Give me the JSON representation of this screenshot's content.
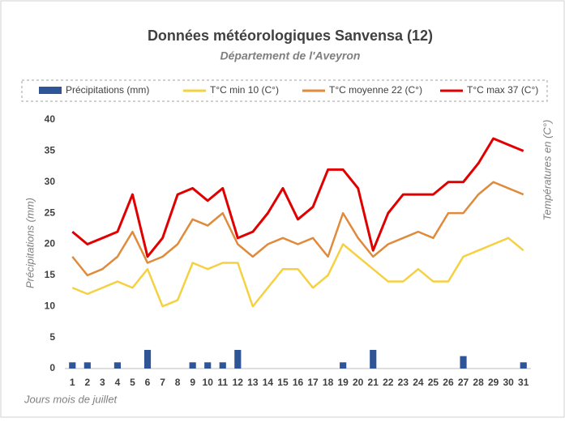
{
  "chart_data": {
    "type": "bar-line",
    "title": "Données météorologiques Sanvensa (12)",
    "subtitle": "Département de l'Aveyron",
    "y_label": "Précipitations (mm)",
    "y2_label": "Températures en (C°)",
    "x_label": "Jours mois de juillet",
    "categories": [
      "1",
      "2",
      "3",
      "4",
      "5",
      "6",
      "7",
      "8",
      "9",
      "10",
      "11",
      "12",
      "13",
      "14",
      "15",
      "16",
      "17",
      "18",
      "19",
      "20",
      "21",
      "22",
      "23",
      "24",
      "25",
      "26",
      "27",
      "28",
      "29",
      "30",
      "31"
    ],
    "series": [
      {
        "name": "Précipitations (mm)",
        "kind": "bar",
        "color": "#2f5597",
        "values": [
          1,
          1,
          0,
          1,
          0,
          3,
          0,
          0,
          1,
          1,
          1,
          3,
          0,
          0,
          0,
          0,
          0,
          0,
          1,
          0,
          3,
          0,
          0,
          0,
          0,
          0,
          2,
          0,
          0,
          0,
          1
        ]
      },
      {
        "name": "T°C min 10 (C°)",
        "kind": "line",
        "color": "#f5d142",
        "values": [
          13,
          12,
          13,
          14,
          13,
          16,
          10,
          11,
          17,
          16,
          17,
          17,
          10,
          13,
          16,
          16,
          13,
          15,
          20,
          18,
          16,
          14,
          14,
          16,
          14,
          14,
          18,
          19,
          20,
          21,
          19
        ]
      },
      {
        "name": "T°C moyenne 22 (C°)",
        "kind": "line",
        "color": "#e08a3c",
        "values": [
          18,
          15,
          16,
          18,
          22,
          17,
          18,
          20,
          24,
          23,
          25,
          20,
          18,
          20,
          21,
          20,
          21,
          18,
          25,
          21,
          18,
          20,
          21,
          22,
          21,
          25,
          25,
          28,
          30,
          29,
          28
        ]
      },
      {
        "name": "T°C max 37 (C°)",
        "kind": "line",
        "color": "#e00000",
        "values": [
          22,
          20,
          21,
          22,
          28,
          18,
          21,
          28,
          29,
          27,
          29,
          21,
          22,
          25,
          29,
          24,
          26,
          32,
          32,
          29,
          19,
          25,
          28,
          28,
          28,
          30,
          30,
          33,
          37,
          36,
          35
        ]
      }
    ],
    "ylim": [
      0,
      40
    ],
    "yticks": [
      0,
      5,
      10,
      15,
      20,
      25,
      30,
      35,
      40
    ],
    "grid": false
  }
}
